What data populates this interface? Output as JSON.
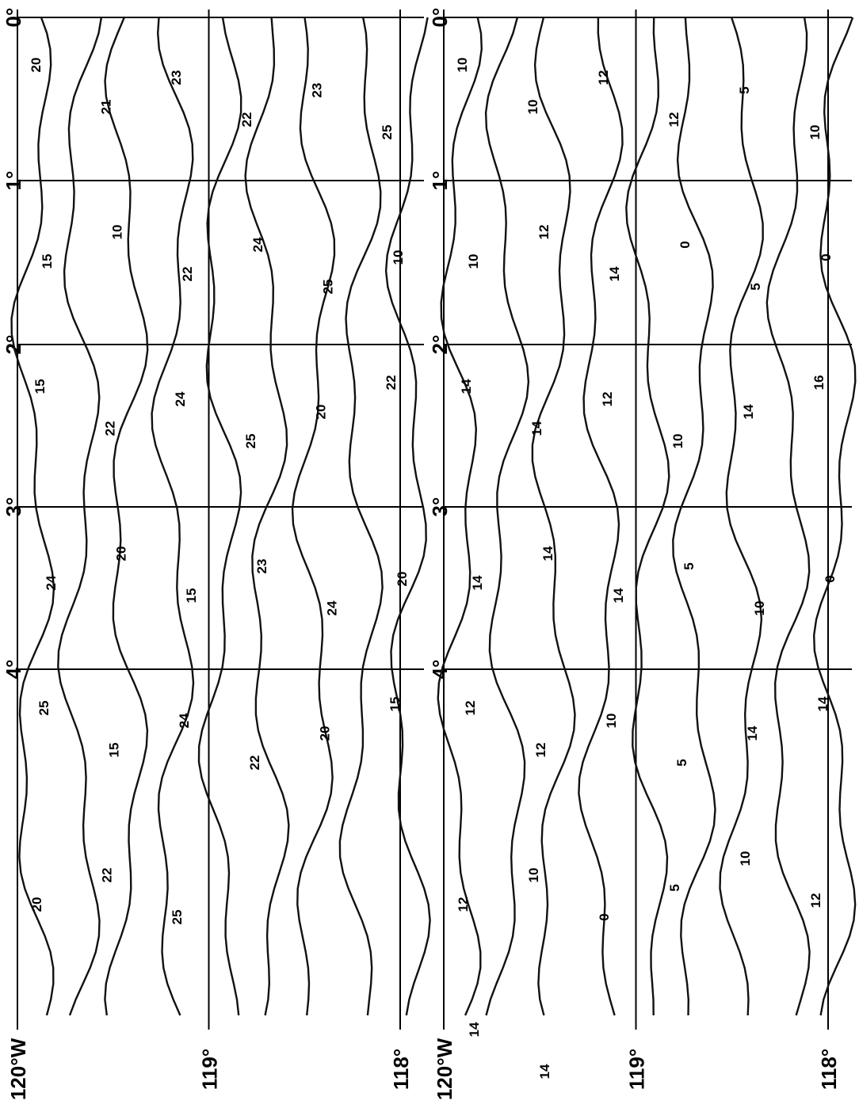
{
  "panels": [
    {
      "lat_labels": [
        "0°",
        "1°",
        "2°",
        "3°",
        "4°"
      ],
      "lon_labels": [
        "120°W",
        "119°",
        "118°"
      ],
      "contour_labels": [
        "20",
        "21",
        "23",
        "22",
        "23",
        "25",
        "15",
        "10",
        "22",
        "24",
        "25",
        "10",
        "15",
        "22",
        "24",
        "25",
        "20",
        "22",
        "24",
        "20",
        "15",
        "23",
        "24",
        "20",
        "25",
        "15",
        "24",
        "22",
        "20",
        "15",
        "20",
        "22",
        "25"
      ]
    },
    {
      "lat_labels": [
        "0°",
        "1°",
        "2°",
        "3°",
        "4°"
      ],
      "lon_labels": [
        "120°W",
        "119°",
        "118°"
      ],
      "contour_labels": [
        "10",
        "10",
        "12",
        "12",
        "5",
        "10",
        "10",
        "12",
        "14",
        "0",
        "5",
        "0",
        "14",
        "14",
        "12",
        "10",
        "14",
        "16",
        "14",
        "14",
        "14",
        "5",
        "10",
        "0",
        "12",
        "12",
        "10",
        "5",
        "14",
        "14",
        "12",
        "10",
        "0",
        "5",
        "10",
        "12",
        "14",
        "14"
      ]
    }
  ]
}
